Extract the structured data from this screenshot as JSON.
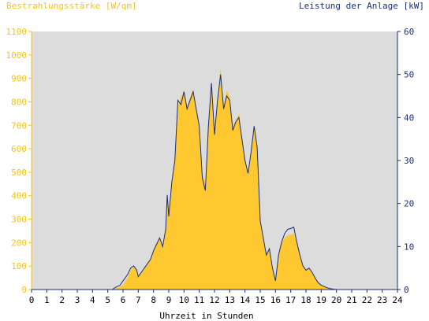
{
  "chart_data": {
    "type": "area",
    "title_left": "Bestrahlungsstärke [W/qm]",
    "title_right": "Leistung der Anlage [kW]",
    "xlabel": "Uhrzeit in Stunden",
    "xlim": [
      0,
      24
    ],
    "ylim_left": [
      0,
      1100
    ],
    "ylim_right": [
      0,
      60
    ],
    "x_ticks": [
      "0",
      "1",
      "2",
      "3",
      "4",
      "5",
      "6",
      "7",
      "8",
      "9",
      "10",
      "11",
      "12",
      "13",
      "14",
      "15",
      "16",
      "17",
      "18",
      "19",
      "20",
      "21",
      "22",
      "23",
      "24"
    ],
    "y_ticks_left": [
      "0",
      "100",
      "200",
      "300",
      "400",
      "500",
      "600",
      "700",
      "800",
      "900",
      "1000",
      "1100"
    ],
    "y_ticks_right": [
      "0",
      "10",
      "20",
      "30",
      "40",
      "50",
      "60"
    ],
    "grid": false,
    "colors": {
      "plot_background": "#dcdcdc",
      "irradiance_fill": "#ffc830",
      "power_line": "#1a2d7a",
      "left_axis_text": "#f5c518",
      "right_axis_text": "#1a2d7a"
    },
    "series": [
      {
        "axis": "left",
        "style": "area",
        "x": [
          0,
          5.3,
          5.5,
          5.8,
          6.0,
          6.3,
          6.5,
          6.7,
          6.9,
          7.0,
          7.2,
          7.5,
          7.8,
          8.0,
          8.2,
          8.4,
          8.6,
          8.8,
          8.9,
          9.0,
          9.2,
          9.4,
          9.6,
          9.8,
          10.0,
          10.2,
          10.4,
          10.6,
          10.8,
          11.0,
          11.2,
          11.4,
          11.6,
          11.8,
          12.0,
          12.2,
          12.4,
          12.6,
          12.8,
          13.0,
          13.2,
          13.4,
          13.6,
          13.8,
          14.0,
          14.2,
          14.4,
          14.6,
          14.8,
          15.0,
          15.2,
          15.4,
          15.6,
          15.8,
          16.0,
          16.2,
          16.4,
          16.6,
          16.8,
          17.0,
          17.2,
          17.4,
          17.6,
          17.8,
          18.0,
          18.2,
          18.4,
          18.6,
          18.8,
          19.0,
          19.2,
          19.4,
          19.6,
          19.8,
          20.0,
          20.2,
          24
        ],
        "values": [
          0,
          0,
          5,
          12,
          20,
          50,
          85,
          95,
          80,
          60,
          75,
          100,
          130,
          170,
          200,
          220,
          180,
          250,
          380,
          300,
          450,
          550,
          780,
          820,
          850,
          780,
          820,
          850,
          760,
          700,
          500,
          450,
          700,
          880,
          650,
          800,
          950,
          780,
          850,
          820,
          700,
          720,
          750,
          650,
          560,
          500,
          580,
          700,
          600,
          300,
          220,
          150,
          180,
          100,
          40,
          150,
          200,
          220,
          230,
          235,
          240,
          200,
          150,
          100,
          80,
          90,
          70,
          50,
          30,
          20,
          15,
          8,
          3,
          2,
          0,
          0,
          0
        ]
      },
      {
        "axis": "right",
        "style": "line",
        "x": [
          0,
          5.3,
          5.5,
          5.8,
          6.0,
          6.3,
          6.5,
          6.7,
          6.9,
          7.0,
          7.2,
          7.5,
          7.8,
          8.0,
          8.2,
          8.4,
          8.6,
          8.8,
          8.9,
          9.0,
          9.2,
          9.4,
          9.6,
          9.8,
          10.0,
          10.2,
          10.4,
          10.6,
          10.8,
          11.0,
          11.2,
          11.4,
          11.6,
          11.8,
          12.0,
          12.2,
          12.4,
          12.6,
          12.8,
          13.0,
          13.2,
          13.4,
          13.6,
          13.8,
          14.0,
          14.2,
          14.4,
          14.6,
          14.8,
          15.0,
          15.2,
          15.4,
          15.6,
          15.8,
          16.0,
          16.2,
          16.4,
          16.6,
          16.8,
          17.0,
          17.2,
          17.4,
          17.6,
          17.8,
          18.0,
          18.2,
          18.4,
          18.6,
          18.8,
          19.0,
          19.2,
          19.4,
          19.6,
          19.8,
          20.0,
          20.2,
          24
        ],
        "values": [
          0,
          0,
          0.5,
          1,
          2,
          3.5,
          5,
          5.5,
          4.5,
          3,
          4,
          5.5,
          7,
          9,
          10.5,
          12,
          10,
          14,
          22,
          17,
          25,
          30,
          44,
          43,
          46,
          42,
          44,
          46,
          42,
          38,
          26,
          23,
          38,
          48,
          36,
          44,
          50,
          42,
          45,
          44,
          37,
          39,
          40,
          35,
          30,
          27,
          32,
          38,
          33,
          16,
          12,
          8,
          9.5,
          5,
          2,
          8,
          11,
          13,
          14,
          14.2,
          14.5,
          11,
          8,
          5.5,
          4.5,
          5,
          4,
          2.7,
          1.6,
          1,
          0.7,
          0.4,
          0.2,
          0.1,
          0,
          0,
          0
        ]
      }
    ]
  }
}
